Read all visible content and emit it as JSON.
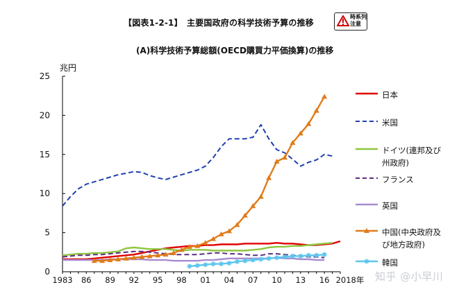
{
  "header": {
    "figure_title": "【図表1-2-1】　主要国政府の科学技術予算の推移",
    "caution_badge_line1": "時系列",
    "caution_badge_line2": "注意"
  },
  "subtitle": "(A)科学技術予算総額(OECD購買力平価換算)の推移",
  "watermark": "知乎 @小早川",
  "chart_data": {
    "type": "line",
    "title": "(A)科学技術予算総額(OECD購買力平価換算)の推移",
    "ylabel": "兆円",
    "xlabel": "年",
    "ylim": [
      0,
      25
    ],
    "xlim": [
      1983,
      2018
    ],
    "yticks": [
      0,
      5,
      10,
      15,
      20,
      25
    ],
    "xtick_values": [
      1983,
      1986,
      1989,
      1992,
      1995,
      1998,
      2001,
      2004,
      2007,
      2010,
      2013,
      2016
    ],
    "xtick_labels": [
      "1983",
      "86",
      "89",
      "92",
      "95",
      "98",
      "01",
      "04",
      "07",
      "10",
      "13",
      "16"
    ],
    "x_end_label": "2018年",
    "legend_position": "right",
    "series": [
      {
        "name": "日本",
        "color": "#e00000",
        "style": "solid",
        "marker": "none",
        "x": [
          1983,
          1984,
          1985,
          1986,
          1987,
          1988,
          1989,
          1990,
          1991,
          1992,
          1993,
          1994,
          1995,
          1996,
          1997,
          1998,
          1999,
          2000,
          2001,
          2002,
          2003,
          2004,
          2005,
          2006,
          2007,
          2008,
          2009,
          2010,
          2011,
          2012,
          2013,
          2014,
          2015,
          2016,
          2017,
          2018
        ],
        "values": [
          1.6,
          1.6,
          1.6,
          1.6,
          1.7,
          1.8,
          1.9,
          2.0,
          2.1,
          2.2,
          2.4,
          2.6,
          2.8,
          3.0,
          3.1,
          3.2,
          3.3,
          3.3,
          3.4,
          3.4,
          3.5,
          3.5,
          3.5,
          3.6,
          3.6,
          3.6,
          3.6,
          3.7,
          3.6,
          3.6,
          3.5,
          3.4,
          3.4,
          3.5,
          3.6,
          3.9
        ]
      },
      {
        "name": "米国",
        "color": "#1f3fb0",
        "style": "dashed",
        "marker": "none",
        "x": [
          1983,
          1984,
          1985,
          1986,
          1987,
          1988,
          1989,
          1990,
          1991,
          1992,
          1993,
          1994,
          1995,
          1996,
          1997,
          1998,
          1999,
          2000,
          2001,
          2002,
          2003,
          2004,
          2005,
          2006,
          2007,
          2008,
          2009,
          2010,
          2011,
          2012,
          2013,
          2014,
          2015,
          2016,
          2017
        ],
        "values": [
          8.4,
          9.6,
          10.6,
          11.2,
          11.5,
          11.8,
          12.1,
          12.4,
          12.6,
          12.8,
          12.7,
          12.3,
          12.0,
          11.8,
          12.1,
          12.4,
          12.7,
          13.0,
          13.5,
          14.6,
          16.0,
          17.0,
          17.0,
          17.0,
          17.2,
          18.8,
          17.0,
          15.6,
          15.2,
          14.4,
          13.5,
          14.0,
          14.3,
          15.0,
          14.8
        ]
      },
      {
        "name": "ドイツ(連邦及び\n州政府)",
        "color": "#8dc63f",
        "style": "solid",
        "marker": "none",
        "x": [
          1983,
          1984,
          1985,
          1986,
          1987,
          1988,
          1989,
          1990,
          1991,
          1992,
          1993,
          1994,
          1995,
          1996,
          1997,
          1998,
          1999,
          2000,
          2001,
          2002,
          2003,
          2004,
          2005,
          2006,
          2007,
          2008,
          2009,
          2010,
          2011,
          2012,
          2013,
          2014,
          2015,
          2016,
          2017
        ],
        "values": [
          2.1,
          2.2,
          2.3,
          2.3,
          2.4,
          2.4,
          2.5,
          2.6,
          3.0,
          3.1,
          3.0,
          2.9,
          2.9,
          2.9,
          2.8,
          2.7,
          2.8,
          2.8,
          2.8,
          2.7,
          2.7,
          2.7,
          2.7,
          2.7,
          2.8,
          2.9,
          3.1,
          3.2,
          3.2,
          3.3,
          3.3,
          3.4,
          3.5,
          3.6,
          3.7
        ]
      },
      {
        "name": "フランス",
        "color": "#5b2c83",
        "style": "dashed",
        "marker": "none",
        "x": [
          1983,
          1984,
          1985,
          1986,
          1987,
          1988,
          1989,
          1990,
          1991,
          1992,
          1993,
          1994,
          1995,
          1996,
          1997,
          1998,
          1999,
          2000,
          2001,
          2002,
          2003,
          2004,
          2005,
          2006,
          2007,
          2008,
          2009,
          2010,
          2011,
          2012,
          2013,
          2014,
          2015,
          2016
        ],
        "values": [
          1.9,
          2.0,
          2.1,
          2.1,
          2.2,
          2.2,
          2.3,
          2.4,
          2.5,
          2.6,
          2.6,
          2.5,
          2.4,
          2.3,
          2.2,
          2.2,
          2.2,
          2.2,
          2.3,
          2.4,
          2.4,
          2.3,
          2.3,
          2.2,
          2.1,
          2.1,
          2.3,
          2.3,
          2.2,
          2.1,
          2.0,
          1.9,
          1.9,
          1.8
        ]
      },
      {
        "name": "英国",
        "color": "#a78bd0",
        "style": "solid",
        "marker": "none",
        "x": [
          1983,
          1984,
          1985,
          1986,
          1987,
          1988,
          1989,
          1990,
          1991,
          1992,
          1993,
          1994,
          1995,
          1996,
          1997,
          1998,
          1999,
          2000,
          2001,
          2002,
          2003,
          2004,
          2005,
          2006,
          2007,
          2008,
          2009,
          2010,
          2011,
          2012,
          2013,
          2014,
          2015,
          2016
        ],
        "values": [
          1.5,
          1.5,
          1.5,
          1.5,
          1.5,
          1.5,
          1.6,
          1.6,
          1.6,
          1.6,
          1.6,
          1.5,
          1.5,
          1.5,
          1.4,
          1.4,
          1.4,
          1.4,
          1.5,
          1.5,
          1.6,
          1.7,
          1.7,
          1.7,
          1.7,
          1.7,
          1.7,
          1.8,
          1.7,
          1.7,
          1.6,
          1.6,
          1.5,
          1.5
        ]
      },
      {
        "name": "中国(中央政府及\nび地方政府)",
        "color": "#e07b1a",
        "style": "solid",
        "marker": "triangle",
        "x": [
          1987,
          1988,
          1989,
          1990,
          1991,
          1992,
          1993,
          1994,
          1995,
          1996,
          1997,
          1998,
          1999,
          2000,
          2001,
          2002,
          2003,
          2004,
          2005,
          2006,
          2007,
          2008,
          2009,
          2010,
          2011,
          2012,
          2013,
          2014,
          2015,
          2016
        ],
        "values": [
          1.4,
          1.4,
          1.5,
          1.6,
          1.7,
          1.8,
          1.9,
          2.0,
          2.1,
          2.2,
          2.4,
          2.8,
          3.2,
          3.3,
          3.7,
          4.2,
          4.8,
          5.2,
          6.0,
          7.2,
          8.4,
          9.6,
          12.0,
          14.1,
          14.6,
          16.5,
          17.7,
          18.9,
          20.6,
          22.4
        ]
      },
      {
        "name": "韓国",
        "color": "#5cc6ee",
        "style": "solid",
        "marker": "star",
        "x": [
          1999,
          2000,
          2001,
          2002,
          2003,
          2004,
          2005,
          2006,
          2007,
          2008,
          2009,
          2010,
          2011,
          2012,
          2013,
          2014,
          2015,
          2016
        ],
        "values": [
          0.7,
          0.8,
          0.9,
          1.0,
          1.0,
          1.1,
          1.3,
          1.4,
          1.5,
          1.6,
          1.7,
          1.8,
          1.9,
          2.0,
          2.0,
          2.1,
          2.1,
          2.2
        ]
      }
    ]
  }
}
